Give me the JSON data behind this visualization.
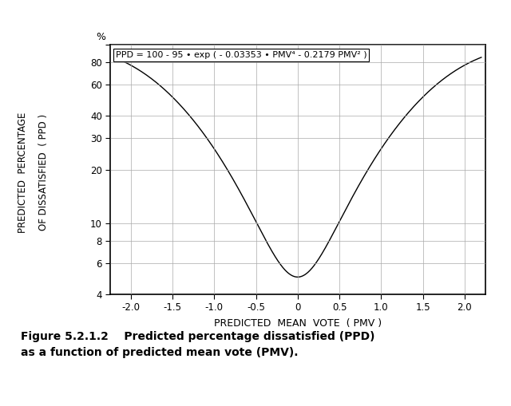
{
  "xlabel": "PREDICTED  MEAN  VOTE  ( PMV )",
  "ylabel_line1": "PREDICTED  PERCENTAGE",
  "ylabel_line2": "OF DISSATISFIED  ( PPD )",
  "ylabel_pct_label": "%",
  "equation_text": "PPD = 100 - 95 • exp ( - 0.03353 • PMV⁴ - 0.2179 PMV² )",
  "xlim": [
    -2.25,
    2.25
  ],
  "ylim_log": [
    4,
    100
  ],
  "xticks": [
    -2.0,
    -1.5,
    -1.0,
    -0.5,
    0.0,
    0.5,
    1.0,
    1.5,
    2.0
  ],
  "xtick_labels": [
    "-2.0",
    "-1.5",
    "-1.0",
    "-0.5",
    "0",
    "0.5",
    "1.0",
    "1.5",
    "2.0"
  ],
  "yticks_major": [
    4,
    6,
    8,
    10,
    20,
    30,
    40,
    60,
    80,
    100
  ],
  "ytick_labels": [
    "4",
    "6",
    "8",
    "10",
    "20",
    "30",
    "40",
    "60",
    "80",
    ""
  ],
  "line_color": "#000000",
  "bg_color": "#ffffff",
  "grid_color": "#aaaaaa",
  "fig_caption_line1": "Figure 5.2.1.2    Predicted percentage dissatisfied (PPD)",
  "fig_caption_line2": "as a function of predicted mean vote (PMV).",
  "figsize": [
    6.4,
    5.09
  ],
  "dpi": 100
}
